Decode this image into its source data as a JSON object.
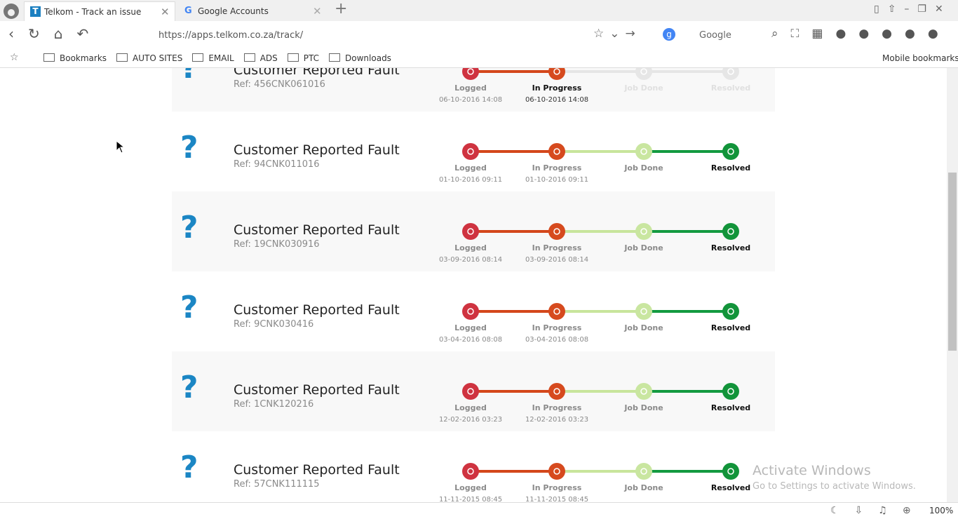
{
  "browser": {
    "tabs": [
      "Telkom - Track an issue",
      "Google Accounts"
    ],
    "url": "https://apps.telkom.co.za/track/",
    "search_engine": "Google",
    "bookmarks": [
      "Bookmarks",
      "AUTO SITES",
      "EMAIL",
      "ADS",
      "PTC",
      "Downloads"
    ],
    "mobile_bookmarks": "Mobile bookmarks",
    "zoom": "100%"
  },
  "stages": [
    "Logged",
    "In Progress",
    "Job Done",
    "Resolved"
  ],
  "tickets": [
    {
      "title": "Customer Reported Fault",
      "ref": "Ref: 456CNK061016",
      "logged": "06-10-2016 14:08",
      "in_progress": "06-10-2016 14:08",
      "current_stage": 1
    },
    {
      "title": "Customer Reported Fault",
      "ref": "Ref: 94CNK011016",
      "logged": "01-10-2016 09:11",
      "in_progress": "01-10-2016 09:11",
      "current_stage": 3
    },
    {
      "title": "Customer Reported Fault",
      "ref": "Ref: 19CNK030916",
      "logged": "03-09-2016 08:14",
      "in_progress": "03-09-2016 08:14",
      "current_stage": 3
    },
    {
      "title": "Customer Reported Fault",
      "ref": "Ref: 9CNK030416",
      "logged": "03-04-2016 08:08",
      "in_progress": "03-04-2016 08:08",
      "current_stage": 3
    },
    {
      "title": "Customer Reported Fault",
      "ref": "Ref: 1CNK120216",
      "logged": "12-02-2016 03:23",
      "in_progress": "12-02-2016 03:23",
      "current_stage": 3
    },
    {
      "title": "Customer Reported Fault",
      "ref": "Ref: 57CNK111115",
      "logged": "11-11-2015 08:45",
      "in_progress": "11-11-2015 08:45",
      "current_stage": 3
    }
  ],
  "watermark": {
    "title": "Activate Windows",
    "text": "Go to Settings to activate Windows."
  }
}
